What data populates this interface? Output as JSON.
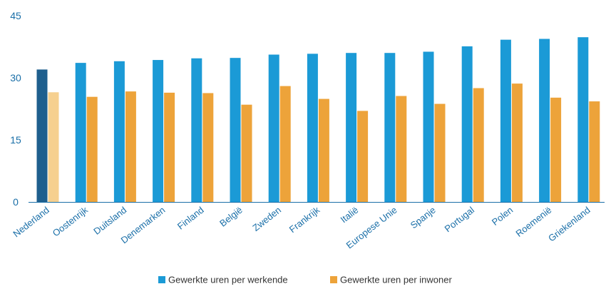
{
  "chart_data": {
    "type": "bar",
    "categories": [
      "Nederland",
      "Oostenrijk",
      "Duitsland",
      "Denemarken",
      "Finland",
      "België",
      "Zweden",
      "Frankrijk",
      "Italië",
      "Europese Unie",
      "Spanje",
      "Portugal",
      "Polen",
      "Roemenië",
      "Griekenland"
    ],
    "series": [
      {
        "name": "Gewerkte uren per werkende",
        "color": "#1b9ad6",
        "highlight_color": "#1e5f8e",
        "values": [
          32.0,
          33.6,
          34.0,
          34.3,
          34.7,
          34.8,
          35.6,
          35.8,
          36.0,
          36.0,
          36.3,
          37.6,
          39.2,
          39.4,
          39.8
        ]
      },
      {
        "name": "Gewerkte uren per inwoner",
        "color": "#eda33a",
        "highlight_color": "#f6d08f",
        "values": [
          26.5,
          25.4,
          26.7,
          26.4,
          26.3,
          23.5,
          28.0,
          24.9,
          22.0,
          25.6,
          23.7,
          27.5,
          28.6,
          25.2,
          24.3
        ]
      }
    ],
    "highlight_category": "Nederland",
    "yticks": [
      0,
      15,
      30,
      45
    ],
    "ylim": [
      0,
      45
    ],
    "title": "",
    "xlabel": "",
    "ylabel": "",
    "grid": false,
    "legend": "bottom",
    "tick_color": "#1a6fa8",
    "axis_color": "#1a6fa8"
  }
}
